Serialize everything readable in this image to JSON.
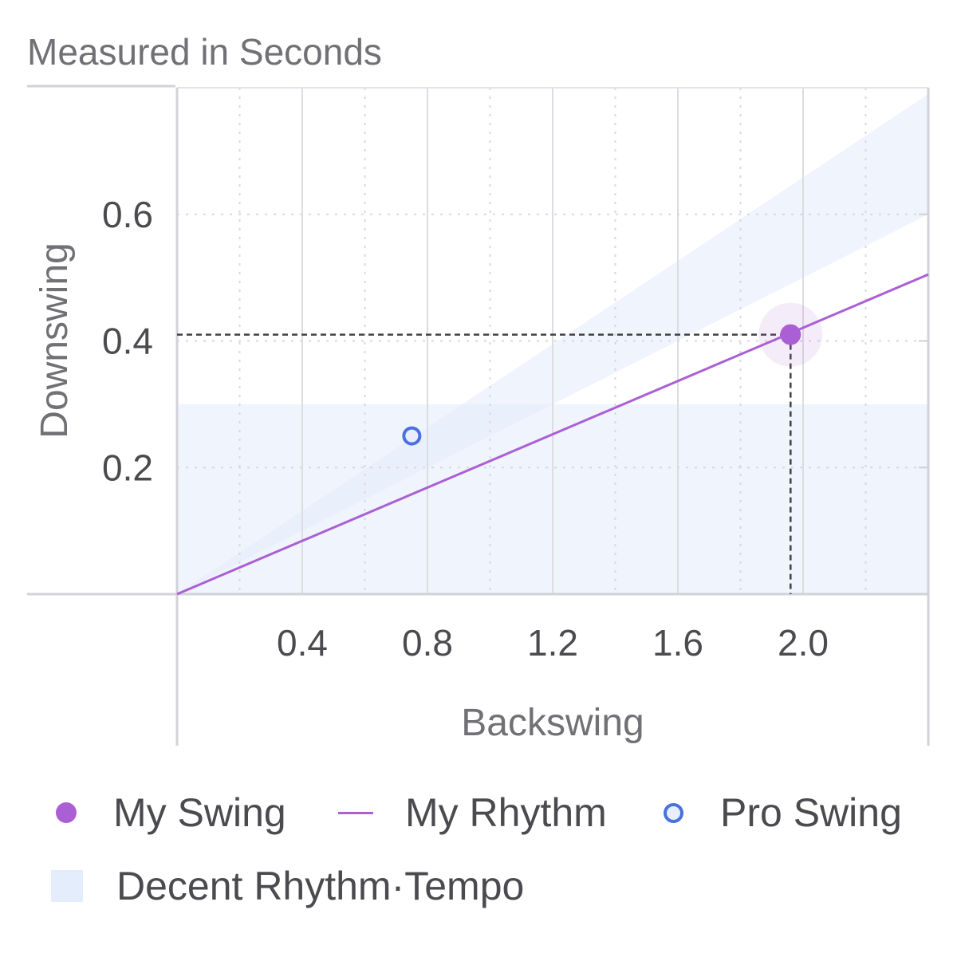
{
  "chart_data": {
    "type": "scatter",
    "subtitle": "Measured in Seconds",
    "xlabel": "Backswing",
    "ylabel": "Downswing",
    "xlim": [
      0,
      2.4
    ],
    "ylim": [
      0,
      0.8
    ],
    "x_ticks": [
      0.4,
      0.8,
      1.2,
      1.6,
      2.0
    ],
    "y_ticks": [
      0.2,
      0.4,
      0.6
    ],
    "x_tick_labels": [
      "0.4",
      "0.8",
      "1.2",
      "1.6",
      "2.0"
    ],
    "y_tick_labels": [
      "0.2",
      "0.4",
      "0.6"
    ],
    "x_minor_grid": [
      0.2,
      0.6,
      1.0,
      1.4,
      1.8,
      2.2
    ],
    "grid": true,
    "series": [
      {
        "name": "My Swing",
        "kind": "point",
        "x": 1.96,
        "y": 0.41,
        "color": "#ab5fd4"
      },
      {
        "name": "My Rhythm",
        "kind": "line",
        "points": [
          [
            0,
            0
          ],
          [
            2.4,
            0.505
          ]
        ],
        "color": "#ab5fd4"
      },
      {
        "name": "Pro Swing",
        "kind": "point",
        "x": 0.75,
        "y": 0.25,
        "color": "#4a72dd"
      },
      {
        "name": "Decent Rhythm·Tempo",
        "kind": "band",
        "horizontal_band": [
          0,
          0.3
        ],
        "diagonal_band": {
          "upper": [
            [
              0,
              0
            ],
            [
              2.4,
              0.79
            ]
          ],
          "lower": [
            [
              0,
              0
            ],
            [
              2.4,
              0.6
            ]
          ]
        },
        "color": "#e4edfc"
      }
    ],
    "legend_position": "bottom"
  },
  "legend": {
    "my_swing": "My Swing",
    "my_rhythm": "My Rhythm",
    "pro_swing": "Pro Swing",
    "decent": "Decent Rhythm·Tempo"
  }
}
